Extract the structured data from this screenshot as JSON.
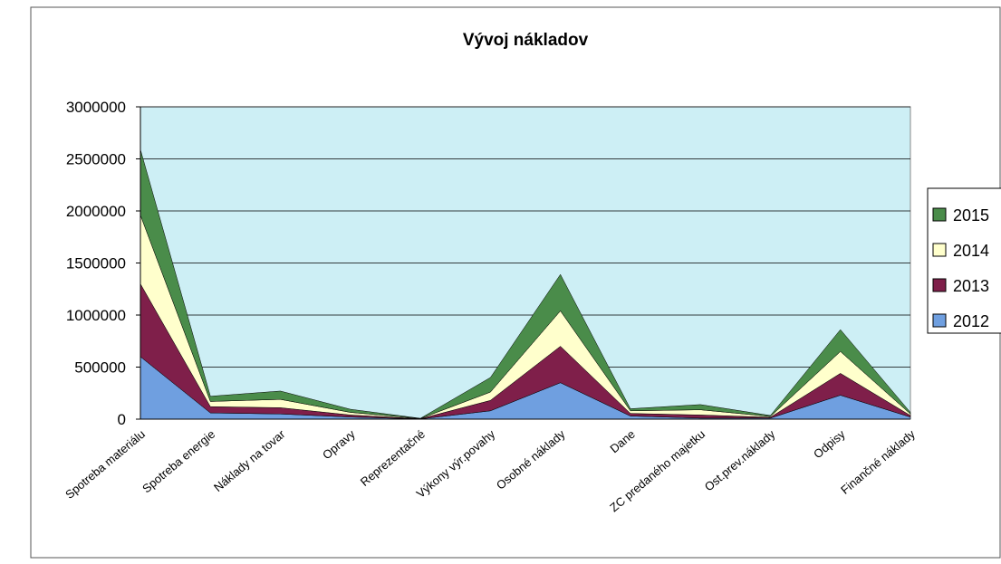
{
  "chart_data": {
    "type": "area",
    "stacked": true,
    "title": "Vývoj nákladov",
    "categories": [
      "Spotreba materiálu",
      "Spotreba energie",
      "Náklady na tovar",
      "Opravy",
      "Reprezentačné",
      "Výkony výr.povahy",
      "Osobné náklady",
      "Dane",
      "ZC predaného majetku",
      "Ost.prev.náklady",
      "Odpisy",
      "Finančné náklady"
    ],
    "series": [
      {
        "name": "2012",
        "color": "#6f9fe0",
        "values": [
          600000,
          60000,
          50000,
          20000,
          2000,
          80000,
          350000,
          30000,
          10000,
          10000,
          230000,
          20000
        ]
      },
      {
        "name": "2013",
        "color": "#7f1f4a",
        "values": [
          700000,
          60000,
          60000,
          20000,
          2000,
          100000,
          350000,
          25000,
          30000,
          8000,
          210000,
          15000
        ]
      },
      {
        "name": "2014",
        "color": "#ffffcc",
        "values": [
          660000,
          50000,
          80000,
          25000,
          2000,
          80000,
          340000,
          25000,
          50000,
          8000,
          210000,
          15000
        ]
      },
      {
        "name": "2015",
        "color": "#4a8c4a",
        "values": [
          630000,
          50000,
          80000,
          30000,
          2000,
          140000,
          350000,
          20000,
          50000,
          9000,
          210000,
          15000
        ]
      }
    ],
    "ylim": [
      0,
      3000000
    ],
    "yticks": [
      0,
      500000,
      1000000,
      1500000,
      2000000,
      2500000,
      3000000
    ],
    "grid": true,
    "legend": "right",
    "plot_background": "#cdeff5"
  }
}
